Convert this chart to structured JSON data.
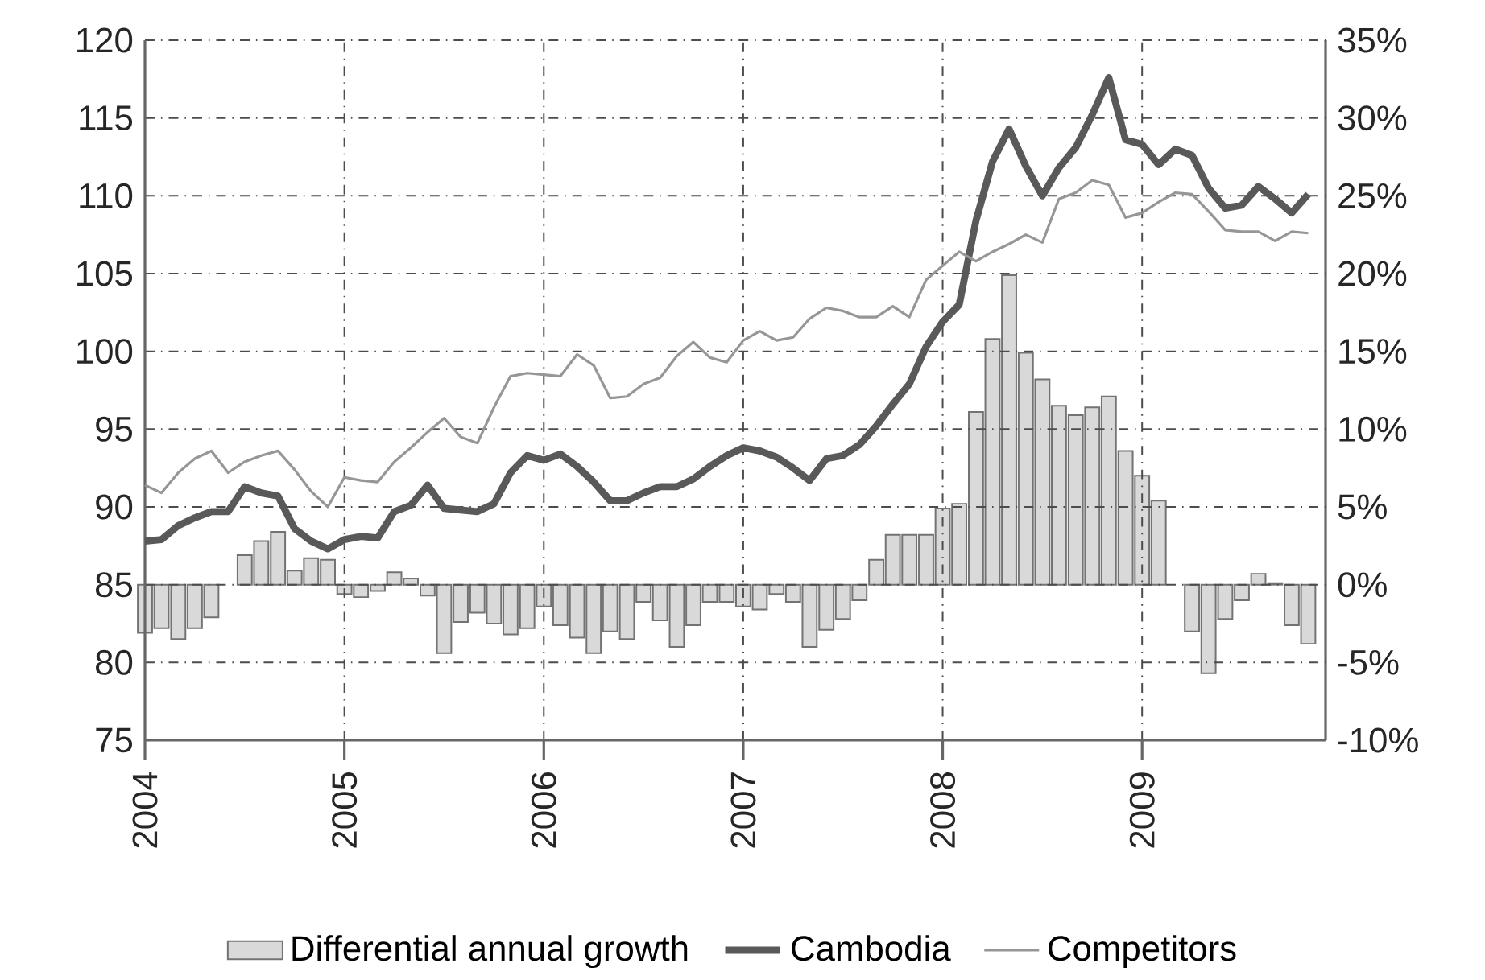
{
  "chart_data": {
    "type": "line",
    "x": [
      2004,
      2004.083,
      2004.167,
      2004.25,
      2004.333,
      2004.417,
      2004.5,
      2004.583,
      2004.667,
      2004.75,
      2004.833,
      2004.917,
      2005,
      2005.083,
      2005.167,
      2005.25,
      2005.333,
      2005.417,
      2005.5,
      2005.583,
      2005.667,
      2005.75,
      2005.833,
      2005.917,
      2006,
      2006.083,
      2006.167,
      2006.25,
      2006.333,
      2006.417,
      2006.5,
      2006.583,
      2006.667,
      2006.75,
      2006.833,
      2006.917,
      2007,
      2007.083,
      2007.167,
      2007.25,
      2007.333,
      2007.417,
      2007.5,
      2007.583,
      2007.667,
      2007.75,
      2007.833,
      2007.917,
      2008,
      2008.083,
      2008.167,
      2008.25,
      2008.333,
      2008.417,
      2008.5,
      2008.583,
      2008.667,
      2008.75,
      2008.833,
      2008.917,
      2009,
      2009.083,
      2009.167,
      2009.25,
      2009.333,
      2009.417,
      2009.5,
      2009.583,
      2009.667,
      2009.75,
      2009.833
    ],
    "series": [
      {
        "name": "Differential annual growth",
        "type": "bar",
        "axis": "y2",
        "color": "#d9d9d9",
        "values": [
          -3.1,
          -2.8,
          -3.5,
          -2.8,
          -2.1,
          0,
          1.9,
          2.8,
          3.4,
          0.9,
          1.7,
          1.6,
          -0.6,
          -0.8,
          -0.4,
          0.8,
          0.4,
          -0.7,
          -4.4,
          -2.4,
          -1.8,
          -2.5,
          -3.2,
          -2.8,
          -1.4,
          -2.6,
          -3.4,
          -4.4,
          -3.0,
          -3.5,
          -1.1,
          -2.3,
          -4.0,
          -2.6,
          -1.1,
          -1.1,
          -1.4,
          -1.6,
          -0.6,
          -1.1,
          -4.0,
          -2.9,
          -2.2,
          -1.0,
          1.6,
          3.2,
          3.2,
          3.2,
          4.9,
          5.2,
          11.1,
          15.8,
          19.9,
          14.9,
          13.2,
          11.5,
          10.9,
          11.4,
          12.1,
          8.6,
          7.0,
          5.4,
          0,
          -3.0,
          -5.7,
          -2.2,
          -1.0,
          0.7,
          0.1,
          -2.6,
          -3.8
        ]
      },
      {
        "name": "Cambodia",
        "color": "#595959",
        "values": [
          87.8,
          87.9,
          88.8,
          89.3,
          89.7,
          89.7,
          91.3,
          90.9,
          90.7,
          88.6,
          87.8,
          87.3,
          87.9,
          88.1,
          88.0,
          89.7,
          90.1,
          91.4,
          89.9,
          89.8,
          89.7,
          90.2,
          92.2,
          93.3,
          93.0,
          93.4,
          92.6,
          91.6,
          90.4,
          90.4,
          90.9,
          91.3,
          91.3,
          91.8,
          92.6,
          93.3,
          93.8,
          93.6,
          93.2,
          92.5,
          91.7,
          93.1,
          93.3,
          94.0,
          95.2,
          96.6,
          97.9,
          100.3,
          101.9,
          103.0,
          108.4,
          112.2,
          114.3,
          111.9,
          110.0,
          111.8,
          113.1,
          115.2,
          117.6,
          113.6,
          113.3,
          112.0,
          113.0,
          112.6,
          110.5,
          109.2,
          109.4,
          110.6,
          109.8,
          108.9,
          110.1
        ]
      },
      {
        "name": "Competitors",
        "color": "#969696",
        "values": [
          91.4,
          90.9,
          92.2,
          93.1,
          93.6,
          92.2,
          92.9,
          93.3,
          93.6,
          92.4,
          91.0,
          90.0,
          91.9,
          91.7,
          91.6,
          92.9,
          93.8,
          94.8,
          95.7,
          94.5,
          94.1,
          96.4,
          98.4,
          98.6,
          98.5,
          98.4,
          99.8,
          99.1,
          97.0,
          97.1,
          97.9,
          98.3,
          99.7,
          100.6,
          99.6,
          99.3,
          100.7,
          101.3,
          100.7,
          100.9,
          102.1,
          102.8,
          102.6,
          102.2,
          102.2,
          102.9,
          102.2,
          104.6,
          105.5,
          106.4,
          105.8,
          106.4,
          106.9,
          107.5,
          107.0,
          109.8,
          110.2,
          111.0,
          110.7,
          108.6,
          108.9,
          109.6,
          110.2,
          110.1,
          109.0,
          107.8,
          107.7,
          107.7,
          107.1,
          107.7,
          107.6
        ]
      }
    ],
    "xlim": [
      2004,
      2009.92
    ],
    "xticks": [
      2004,
      2005,
      2006,
      2007,
      2008,
      2009
    ],
    "ylim": [
      75,
      120
    ],
    "yticks": [
      75,
      80,
      85,
      90,
      95,
      100,
      105,
      110,
      115,
      120
    ],
    "y2lim": [
      -10,
      35
    ],
    "y2ticks": [
      {
        "value": -10,
        "label": "-10%"
      },
      {
        "value": -5,
        "label": "-5%"
      },
      {
        "value": 0,
        "label": "0%"
      },
      {
        "value": 5,
        "label": "5%"
      },
      {
        "value": 10,
        "label": "10%"
      },
      {
        "value": 15,
        "label": "15%"
      },
      {
        "value": 20,
        "label": "20%"
      },
      {
        "value": 25,
        "label": "25%"
      },
      {
        "value": 30,
        "label": "30%"
      },
      {
        "value": 35,
        "label": "35%"
      }
    ],
    "grid": true,
    "legend": "bottom"
  }
}
